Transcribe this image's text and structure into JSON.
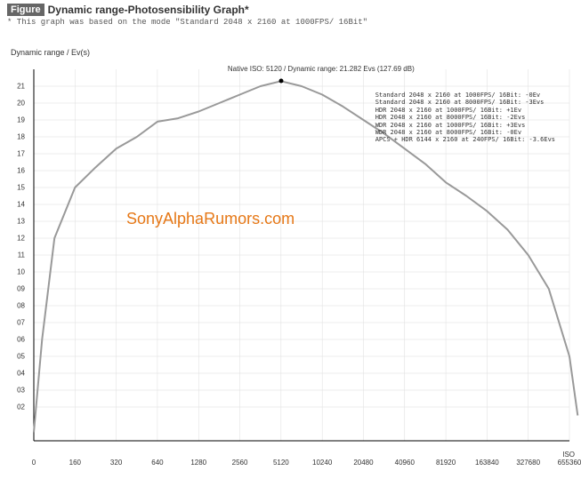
{
  "header": {
    "figure_badge": "Figure",
    "title": "Dynamic range-Photosensibility Graph*",
    "subtitle": "* This graph was based on the mode \"Standard 2048 x 2160 at 1000FPS/ 16Bit\""
  },
  "chart": {
    "type": "line",
    "y_label": "Dynamic range / Ev(s)",
    "x_label": "ISO",
    "ylim": [
      0,
      22
    ],
    "y_ticks": [
      "02",
      "03",
      "04",
      "05",
      "06",
      "07",
      "08",
      "09",
      "10",
      "11",
      "12",
      "13",
      "14",
      "15",
      "16",
      "17",
      "18",
      "19",
      "20",
      "21"
    ],
    "x_ticks": [
      "0",
      "160",
      "320",
      "640",
      "1280",
      "2560",
      "5120",
      "10240",
      "20480",
      "40960",
      "81920",
      "163840",
      "327680",
      "655360"
    ],
    "background_color": "#ffffff",
    "axis_color": "#000000",
    "grid_color": "#dddddd",
    "line_color": "#999999",
    "line_width": 2,
    "data": [
      {
        "x_idx": 0.0,
        "y": 0.5
      },
      {
        "x_idx": 0.2,
        "y": 6.0
      },
      {
        "x_idx": 0.5,
        "y": 12.0
      },
      {
        "x_idx": 1.0,
        "y": 15.0
      },
      {
        "x_idx": 1.5,
        "y": 16.2
      },
      {
        "x_idx": 2.0,
        "y": 17.3
      },
      {
        "x_idx": 2.5,
        "y": 18.0
      },
      {
        "x_idx": 3.0,
        "y": 18.9
      },
      {
        "x_idx": 3.5,
        "y": 19.1
      },
      {
        "x_idx": 4.0,
        "y": 19.5
      },
      {
        "x_idx": 4.5,
        "y": 20.0
      },
      {
        "x_idx": 5.0,
        "y": 20.5
      },
      {
        "x_idx": 5.5,
        "y": 21.0
      },
      {
        "x_idx": 6.0,
        "y": 21.3
      },
      {
        "x_idx": 6.5,
        "y": 21.0
      },
      {
        "x_idx": 7.0,
        "y": 20.5
      },
      {
        "x_idx": 7.5,
        "y": 19.8
      },
      {
        "x_idx": 8.0,
        "y": 19.0
      },
      {
        "x_idx": 8.5,
        "y": 18.2
      },
      {
        "x_idx": 9.0,
        "y": 17.3
      },
      {
        "x_idx": 9.5,
        "y": 16.4
      },
      {
        "x_idx": 10.0,
        "y": 15.3
      },
      {
        "x_idx": 10.5,
        "y": 14.5
      },
      {
        "x_idx": 11.0,
        "y": 13.6
      },
      {
        "x_idx": 11.5,
        "y": 12.5
      },
      {
        "x_idx": 12.0,
        "y": 11.0
      },
      {
        "x_idx": 12.5,
        "y": 9.0
      },
      {
        "x_idx": 13.0,
        "y": 5.0
      },
      {
        "x_idx": 13.2,
        "y": 1.5
      }
    ],
    "peak": {
      "x_idx": 6.0,
      "y": 21.3,
      "label": "Native ISO: 5120 / Dynamic range: 21.282 Evs (127.69 dB)"
    },
    "legend": {
      "fontsize": 7,
      "color": "#333333",
      "lines": [
        "Standard 2048 x 2160 at 1000FPS/ 16Bit: -0Ev",
        "Standard 2048 x 2160 at 8000FPS/ 16Bit: -3Evs",
        "HDR 2048 x 2160 at 1000FPS/ 16Bit: +1Ev",
        "HDR 2048 x 2160 at 8000FPS/ 16Bit: -2Evs",
        "WDR 2048 x 2160 at 1000FPS/ 16Bit: +3Evs",
        "WDR 2048 x 2160 at 8000FPS/ 16Bit: -0Ev",
        "APCS + HDR 6144 x 2160 at 240FPS/ 16Bit: -3.6Evs"
      ]
    },
    "watermark": {
      "text": "SonyAlphaRumors.com",
      "color": "#e67817"
    }
  }
}
